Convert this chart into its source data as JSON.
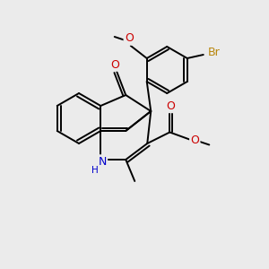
{
  "bg_color": "#ebebeb",
  "bond_color": "#000000",
  "bond_width": 1.4,
  "font_size": 8.5,
  "fig_size": [
    3.0,
    3.0
  ],
  "dpi": 100,
  "colors": {
    "N": "#0000cc",
    "H": "#0000cc",
    "O": "#cc0000",
    "Br": "#b8860b",
    "C": "#000000"
  }
}
